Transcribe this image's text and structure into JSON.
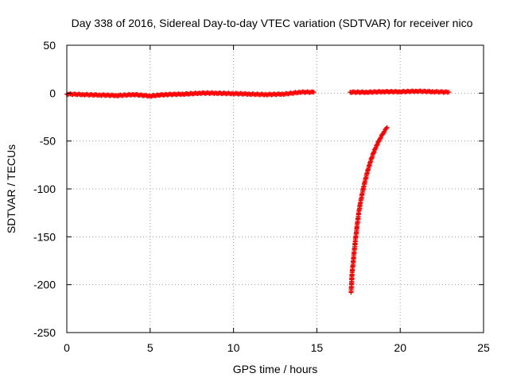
{
  "chart_data": {
    "type": "scatter",
    "title": "Day 338 of 2016, Sidereal Day-to-day VTEC variation (SDTVAR) for receiver nico",
    "xlabel": "GPS time / hours",
    "ylabel": "SDTVAR / TECUs",
    "xlim": [
      0,
      25
    ],
    "ylim": [
      -250,
      50
    ],
    "xticks": [
      0,
      5,
      10,
      15,
      20,
      25
    ],
    "yticks": [
      -250,
      -200,
      -150,
      -100,
      -50,
      0,
      50
    ],
    "grid": true,
    "marker": "plus",
    "series": [
      {
        "color": "#ff0000",
        "segments": [
          {
            "description": "near-zero variation",
            "x": [
              0.0,
              1.0,
              2.0,
              3.0,
              4.0,
              5.0,
              5.5,
              6.0,
              7.0,
              8.0,
              9.0,
              10.0,
              11.0,
              12.0,
              13.0,
              14.0,
              14.8
            ],
            "y": [
              -1,
              -1.5,
              -2,
              -2.5,
              -1.5,
              -3,
              -2,
              -1.5,
              -1,
              0,
              0,
              -0.5,
              -1,
              -1.5,
              -1,
              1,
              1
            ]
          },
          {
            "x": [
              17.0,
              18.0,
              19.0,
              20.0,
              21.0,
              22.0,
              22.9
            ],
            "y": [
              1,
              1,
              1.5,
              1.5,
              2,
              1.5,
              1
            ]
          },
          {
            "x": [
              17.05,
              17.1,
              17.2,
              17.3,
              17.4,
              17.5,
              17.6,
              17.8,
              18.0,
              18.2,
              18.4,
              18.6,
              18.8,
              19.0,
              19.2
            ],
            "y": [
              -208,
              -190,
              -172,
              -155,
              -140,
              -126,
              -115,
              -98,
              -84,
              -72,
              -62,
              -54,
              -47,
              -41,
              -36
            ]
          }
        ]
      }
    ]
  }
}
